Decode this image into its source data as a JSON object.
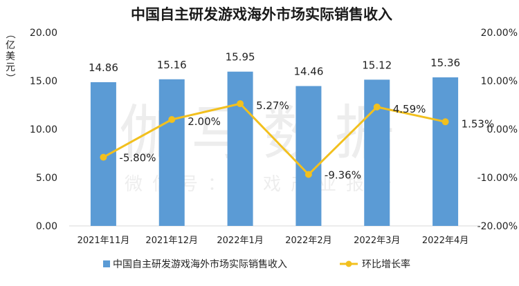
{
  "chart_data": {
    "type": "bar",
    "title": "中国自主研发游戏海外市场实际销售收入",
    "ylabel": "（亿美元）",
    "categories": [
      "2021年11月",
      "2021年12月",
      "2022年1月",
      "2022年2月",
      "2022年3月",
      "2022年4月"
    ],
    "series": [
      {
        "name": "中国自主研发游戏海外市场实际销售收入",
        "type": "bar",
        "axis": "left",
        "color": "#5b9bd5",
        "values": [
          14.86,
          15.16,
          15.95,
          14.46,
          15.12,
          15.36
        ],
        "labels": [
          "14.86",
          "15.16",
          "15.95",
          "14.46",
          "15.12",
          "15.36"
        ]
      },
      {
        "name": "环比增长率",
        "type": "line",
        "axis": "right",
        "color": "#f2c01e",
        "values": [
          -5.8,
          2.0,
          5.27,
          -9.36,
          4.59,
          1.53
        ],
        "labels": [
          "-5.80%",
          "2.00%",
          "5.27%",
          "-9.36%",
          "4.59%",
          "1.53%"
        ]
      }
    ],
    "y_left": {
      "lim": [
        0,
        20
      ],
      "ticks": [
        0,
        5,
        10,
        15,
        20
      ],
      "tick_labels": [
        "0.00",
        "5.00",
        "10.00",
        "15.00",
        "20.00"
      ]
    },
    "y_right": {
      "lim": [
        -20,
        20
      ],
      "ticks": [
        -20,
        -10,
        0,
        10,
        20
      ],
      "tick_labels": [
        "-20.00%",
        "-10.00%",
        "0.00%",
        "10.00%",
        "20.00%"
      ]
    },
    "grid": false,
    "legend": "bottom"
  },
  "watermark": {
    "main": "伽马数据",
    "sub": "微信号：游戏产业报告"
  }
}
